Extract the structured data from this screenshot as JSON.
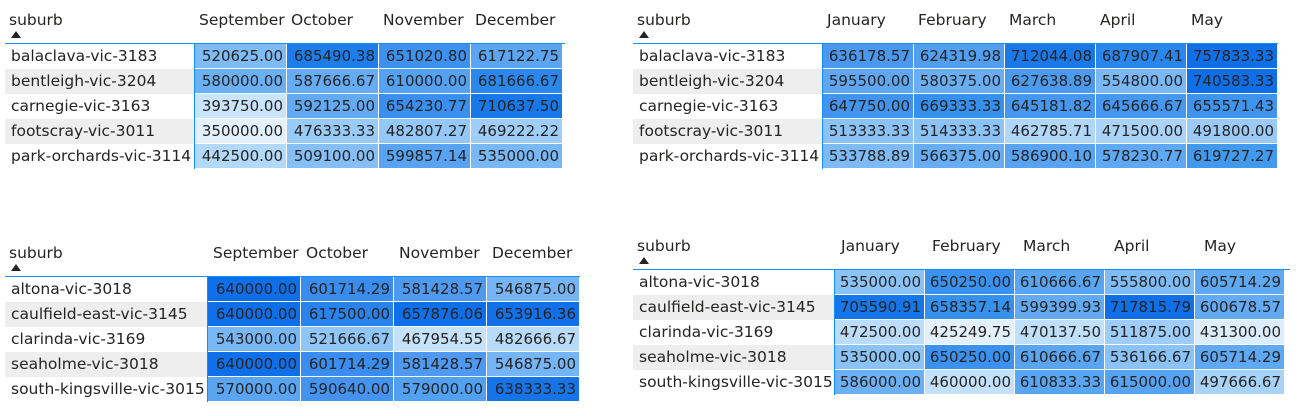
{
  "tables": [
    {
      "label_header": "suburb",
      "months": [
        "September",
        "October",
        "November",
        "December"
      ],
      "rows": [
        {
          "suburb": "balaclava-vic-3183",
          "values": [
            "520625.00",
            "685490.38",
            "651020.80",
            "617122.75"
          ],
          "colors": [
            "#7fbcf6",
            "#1c7deb",
            "#3d91ef",
            "#5ca5f2"
          ]
        },
        {
          "suburb": "bentleigh-vic-3204",
          "values": [
            "580000.00",
            "587666.67",
            "610000.00",
            "681666.67"
          ],
          "colors": [
            "#6cb0f4",
            "#66acf4",
            "#55a1f2",
            "#2a88ed"
          ]
        },
        {
          "suburb": "carnegie-vic-3163",
          "values": [
            "393750.00",
            "592125.00",
            "654230.77",
            "710637.50"
          ],
          "colors": [
            "#c9e4fb",
            "#63aaf3",
            "#3b8fef",
            "#1877e9"
          ]
        },
        {
          "suburb": "footscray-vic-3011",
          "values": [
            "350000.00",
            "476333.33",
            "482807.27",
            "469222.22"
          ],
          "colors": [
            "#e3f1fd",
            "#99cbf8",
            "#94c8f8",
            "#9dcdf8"
          ]
        },
        {
          "suburb": "park-orchards-vic-3114",
          "values": [
            "442500.00",
            "509100.00",
            "599857.14",
            "535000.00"
          ],
          "colors": [
            "#b2d9fa",
            "#85bff6",
            "#59a4f2",
            "#78b8f5"
          ]
        }
      ]
    },
    {
      "label_header": "suburb",
      "months": [
        "January",
        "February",
        "March",
        "April",
        "May"
      ],
      "rows": [
        {
          "suburb": "balaclava-vic-3183",
          "values": [
            "636178.57",
            "624319.98",
            "712044.08",
            "687907.41",
            "757833.33"
          ],
          "colors": [
            "#4a98f0",
            "#529ff1",
            "#1b78e9",
            "#2986ec",
            "#0f6fe8"
          ]
        },
        {
          "suburb": "bentleigh-vic-3204",
          "values": [
            "595500.00",
            "580375.00",
            "627638.89",
            "554800.00",
            "740583.33"
          ],
          "colors": [
            "#5fa7f2",
            "#69adf3",
            "#4c9af0",
            "#7ab8f5",
            "#0f6fe8"
          ]
        },
        {
          "suburb": "carnegie-vic-3163",
          "values": [
            "647750.00",
            "669333.33",
            "645181.82",
            "645666.67",
            "655571.43"
          ],
          "colors": [
            "#4394ef",
            "#3590ee",
            "#4697ef",
            "#4597ef",
            "#3f94ef"
          ]
        },
        {
          "suburb": "footscray-vic-3011",
          "values": [
            "513333.33",
            "514333.33",
            "462785.71",
            "471500.00",
            "491800.00"
          ],
          "colors": [
            "#8cc3f7",
            "#8bc2f7",
            "#b0d7fa",
            "#aad3f9",
            "#9bcaf8"
          ]
        },
        {
          "suburb": "park-orchards-vic-3114",
          "values": [
            "533788.89",
            "566375.00",
            "586900.10",
            "578230.77",
            "619727.27"
          ],
          "colors": [
            "#7dbaf6",
            "#66adf4",
            "#58a4f2",
            "#5fa8f3",
            "#429aef"
          ]
        }
      ]
    },
    {
      "label_header": "suburb",
      "months": [
        "September",
        "October",
        "November",
        "December"
      ],
      "rows": [
        {
          "suburb": "altona-vic-3018",
          "values": [
            "640000.00",
            "601714.29",
            "581428.57",
            "546875.00"
          ],
          "colors": [
            "#0f6fe8",
            "#3a8cee",
            "#4f99f0",
            "#75b4f5"
          ]
        },
        {
          "suburb": "caulfield-east-vic-3145",
          "values": [
            "640000.00",
            "617500.00",
            "657876.06",
            "653916.36"
          ],
          "colors": [
            "#0f6fe8",
            "#2a82ec",
            "#0f6fe8",
            "#1271e8"
          ]
        },
        {
          "suburb": "clarinda-vic-3169",
          "values": [
            "543000.00",
            "521666.67",
            "467954.55",
            "482666.67"
          ],
          "colors": [
            "#78b7f5",
            "#90c5f7",
            "#c6e2fb",
            "#b8dbfa"
          ]
        },
        {
          "suburb": "seaholme-vic-3018",
          "values": [
            "640000.00",
            "601714.29",
            "581428.57",
            "546875.00"
          ],
          "colors": [
            "#0f6fe8",
            "#3a8cee",
            "#4f99f0",
            "#75b4f5"
          ]
        },
        {
          "suburb": "south-kingsville-vic-3015",
          "values": [
            "570000.00",
            "590640.00",
            "579000.00",
            "638333.33"
          ],
          "colors": [
            "#5aa5f2",
            "#4494ef",
            "#51a0f1",
            "#1474e8"
          ]
        }
      ]
    },
    {
      "label_header": "suburb",
      "months": [
        "January",
        "February",
        "March",
        "April",
        "May"
      ],
      "rows": [
        {
          "suburb": "altona-vic-3018",
          "values": [
            "535000.00",
            "650250.00",
            "610666.67",
            "555800.00",
            "605714.29"
          ],
          "colors": [
            "#8cc3f7",
            "#3b91ef",
            "#5aa5f2",
            "#7fbcf6",
            "#5fa8f3"
          ]
        },
        {
          "suburb": "caulfield-east-vic-3145",
          "values": [
            "705590.91",
            "658357.14",
            "599399.93",
            "717815.79",
            "600678.57"
          ],
          "colors": [
            "#1476e9",
            "#3590ee",
            "#63aaf3",
            "#0f6fe8",
            "#62aaf3"
          ]
        },
        {
          "suburb": "clarinda-vic-3169",
          "values": [
            "472500.00",
            "425249.75",
            "470137.50",
            "511875.00",
            "431300.00"
          ],
          "colors": [
            "#bcddfa",
            "#e3f1fd",
            "#bfdffb",
            "#9dcdf8",
            "#dcedfc"
          ]
        },
        {
          "suburb": "seaholme-vic-3018",
          "values": [
            "535000.00",
            "650250.00",
            "610666.67",
            "536166.67",
            "605714.29"
          ],
          "colors": [
            "#8cc3f7",
            "#3b91ef",
            "#5aa5f2",
            "#8bc2f7",
            "#5fa8f3"
          ]
        },
        {
          "suburb": "south-kingsville-vic-3015",
          "values": [
            "586000.00",
            "460000.00",
            "610833.33",
            "615000.00",
            "497666.67"
          ],
          "colors": [
            "#6cb0f4",
            "#c4e1fb",
            "#5aa5f2",
            "#57a3f2",
            "#a8d3f9"
          ]
        }
      ]
    }
  ],
  "accent_color": "#118dff",
  "alt_row_color": "#eeeeee"
}
